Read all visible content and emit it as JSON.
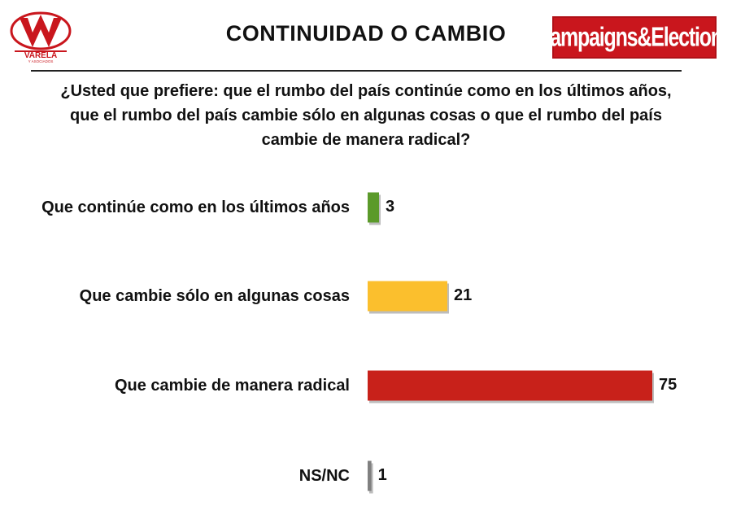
{
  "header": {
    "left_logo": {
      "icon": "varela-logo-icon",
      "text": "VARELA",
      "subtext": "Y ASOCIADOS"
    },
    "title": "CONTINUIDAD O CAMBIO",
    "right_logo": {
      "text": "Campaigns&Elections"
    }
  },
  "chart_data": {
    "type": "bar",
    "orientation": "horizontal",
    "title": "¿Usted que prefiere: que el rumbo del país continúe como en los últimos años, que el rumbo del país cambie sólo en algunas cosas o que el rumbo del país cambie de manera radical?",
    "categories": [
      "Que continúe como en los últimos años",
      "Que cambie sólo en algunas cosas",
      "Que cambie de manera radical",
      "NS/NC"
    ],
    "values": [
      3,
      21,
      75,
      1
    ],
    "colors": [
      "#5b9a2a",
      "#fbbf2d",
      "#c8211a",
      "#808080"
    ],
    "xlim": [
      0,
      75
    ],
    "grid": false,
    "xlabel": "",
    "ylabel": ""
  }
}
